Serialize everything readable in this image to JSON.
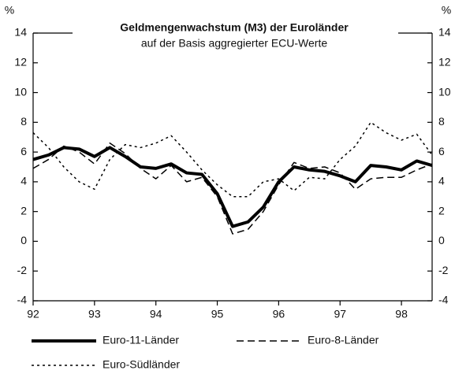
{
  "chart_data": {
    "type": "line",
    "title": "Geldmengenwachstum (M3) der Euroländer",
    "subtitle": "auf der Basis aggregierter ECU-Werte",
    "ylabel": "%",
    "x": [
      92,
      92.25,
      92.5,
      92.75,
      93,
      93.25,
      93.5,
      93.75,
      94,
      94.25,
      94.5,
      94.75,
      95,
      95.25,
      95.5,
      95.75,
      96,
      96.25,
      96.5,
      96.75,
      97,
      97.25,
      97.5,
      97.75,
      98,
      98.25,
      98.5
    ],
    "series": [
      {
        "name": "Euro-11-Länder",
        "color": "#000000",
        "style": "solid",
        "width": 4,
        "values": [
          5.5,
          5.8,
          6.3,
          6.2,
          5.7,
          6.3,
          5.7,
          5.0,
          4.9,
          5.2,
          4.6,
          4.5,
          3.2,
          1.0,
          1.3,
          2.3,
          4.0,
          5.0,
          4.8,
          4.7,
          4.4,
          4.0,
          5.1,
          5.0,
          4.8,
          5.4,
          5.1
        ]
      },
      {
        "name": "Euro-8-Länder",
        "color": "#000000",
        "style": "dashed",
        "width": 1.5,
        "values": [
          4.9,
          5.5,
          6.4,
          6.0,
          5.2,
          6.6,
          5.9,
          4.9,
          4.2,
          5.1,
          4.0,
          4.3,
          3.0,
          0.5,
          0.8,
          2.0,
          3.8,
          5.3,
          4.9,
          5.0,
          4.6,
          3.5,
          4.2,
          4.3,
          4.3,
          4.8,
          5.2
        ]
      },
      {
        "name": "Euro-Südländer",
        "color": "#000000",
        "style": "dotted",
        "width": 1.5,
        "values": [
          7.3,
          6.3,
          5.0,
          4.0,
          3.5,
          5.5,
          6.5,
          6.3,
          6.6,
          7.1,
          6.0,
          4.8,
          3.8,
          3.0,
          3.0,
          4.0,
          4.2,
          3.4,
          4.3,
          4.2,
          5.5,
          6.4,
          8.0,
          7.3,
          6.8,
          7.2,
          5.8
        ]
      }
    ],
    "xlim": [
      92,
      98.5
    ],
    "xticks": [
      92,
      93,
      94,
      95,
      96,
      97,
      98
    ],
    "ylim": [
      -4,
      14
    ],
    "yticks": [
      -4,
      -2,
      0,
      2,
      4,
      6,
      8,
      10,
      12,
      14
    ],
    "right_axis": true
  }
}
